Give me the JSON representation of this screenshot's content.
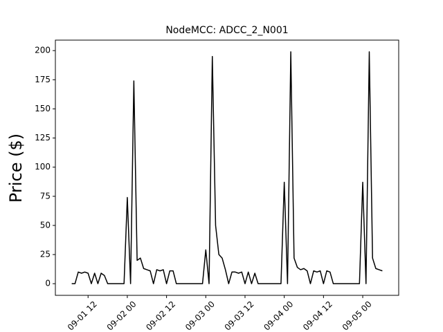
{
  "chart_data": {
    "type": "line",
    "title": "NodeMCC: ADCC_2_N001",
    "y_label": "Price ($)",
    "x": [
      "09-01 07",
      "09-01 08",
      "09-01 09",
      "09-01 10",
      "09-01 11",
      "09-01 12",
      "09-01 13",
      "09-01 14",
      "09-01 15",
      "09-01 16",
      "09-01 17",
      "09-01 18",
      "09-01 19",
      "09-01 20",
      "09-01 21",
      "09-01 22",
      "09-01 23",
      "09-02 00",
      "09-02 01",
      "09-02 02",
      "09-02 03",
      "09-02 04",
      "09-02 05",
      "09-02 06",
      "09-02 07",
      "09-02 08",
      "09-02 09",
      "09-02 10",
      "09-02 11",
      "09-02 12",
      "09-02 13",
      "09-02 14",
      "09-02 15",
      "09-02 16",
      "09-02 17",
      "09-02 18",
      "09-02 19",
      "09-02 20",
      "09-02 21",
      "09-02 22",
      "09-02 23",
      "09-03 00",
      "09-03 01",
      "09-03 02",
      "09-03 03",
      "09-03 04",
      "09-03 05",
      "09-03 06",
      "09-03 07",
      "09-03 08",
      "09-03 09",
      "09-03 10",
      "09-03 11",
      "09-03 12",
      "09-03 13",
      "09-03 14",
      "09-03 15",
      "09-03 16",
      "09-03 17",
      "09-03 18",
      "09-03 19",
      "09-03 20",
      "09-03 21",
      "09-03 22",
      "09-03 23",
      "09-04 00",
      "09-04 01",
      "09-04 02",
      "09-04 03",
      "09-04 04",
      "09-04 05",
      "09-04 06",
      "09-04 07",
      "09-04 08",
      "09-04 09",
      "09-04 10",
      "09-04 11",
      "09-04 12",
      "09-04 13",
      "09-04 14",
      "09-04 15",
      "09-04 16",
      "09-04 17",
      "09-04 18",
      "09-04 19",
      "09-04 20",
      "09-04 21",
      "09-04 22",
      "09-04 23",
      "09-05 00",
      "09-05 01",
      "09-05 02",
      "09-05 03",
      "09-05 04",
      "09-05 05",
      "09-05 06"
    ],
    "series": [
      {
        "name": "Price",
        "color": "#000000",
        "values": [
          0,
          0,
          10,
          9,
          10,
          9,
          0,
          9,
          0,
          9,
          7,
          0,
          0,
          0,
          0,
          0,
          0,
          74,
          0,
          174,
          20,
          22,
          13,
          12,
          11,
          0,
          12,
          11,
          12,
          0,
          11,
          11,
          0,
          0,
          0,
          0,
          0,
          0,
          0,
          0,
          0,
          29,
          0,
          195,
          50,
          25,
          22,
          12,
          0,
          10,
          10,
          9,
          10,
          0,
          10,
          0,
          9,
          0,
          0,
          0,
          0,
          0,
          0,
          0,
          0,
          87,
          0,
          199,
          22,
          14,
          12,
          13,
          11,
          0,
          11,
          10,
          11,
          0,
          11,
          10,
          0,
          0,
          0,
          0,
          0,
          0,
          0,
          0,
          0,
          87,
          0,
          199,
          22,
          13,
          12,
          11
        ]
      }
    ],
    "xlim": [
      "09-01 02",
      "09-05 11"
    ],
    "xticks": [
      "09-01 12",
      "09-02 00",
      "09-02 12",
      "09-03 00",
      "09-03 12",
      "09-04 00",
      "09-04 12",
      "09-05 00"
    ],
    "ylim": [
      -10,
      209
    ],
    "yticks": [
      0,
      25,
      50,
      75,
      100,
      125,
      150,
      175,
      200
    ]
  }
}
